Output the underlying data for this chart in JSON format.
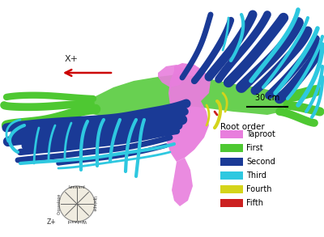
{
  "background_color": "#ffffff",
  "legend_title": "Root order",
  "legend_items": [
    {
      "label": "Taproot",
      "color": "#e87edd"
    },
    {
      "label": "First",
      "color": "#4ec832"
    },
    {
      "label": "Second",
      "color": "#1a3a96"
    },
    {
      "label": "Third",
      "color": "#2ec8e0"
    },
    {
      "label": "Fourth",
      "color": "#d4d41a"
    },
    {
      "label": "Fifth",
      "color": "#cc2020"
    }
  ],
  "arrow_label": "X+",
  "arrow_color": "#cc0000",
  "scale_bar_label": "30 cm",
  "fig_width": 4.0,
  "fig_height": 2.93,
  "dpi": 100
}
